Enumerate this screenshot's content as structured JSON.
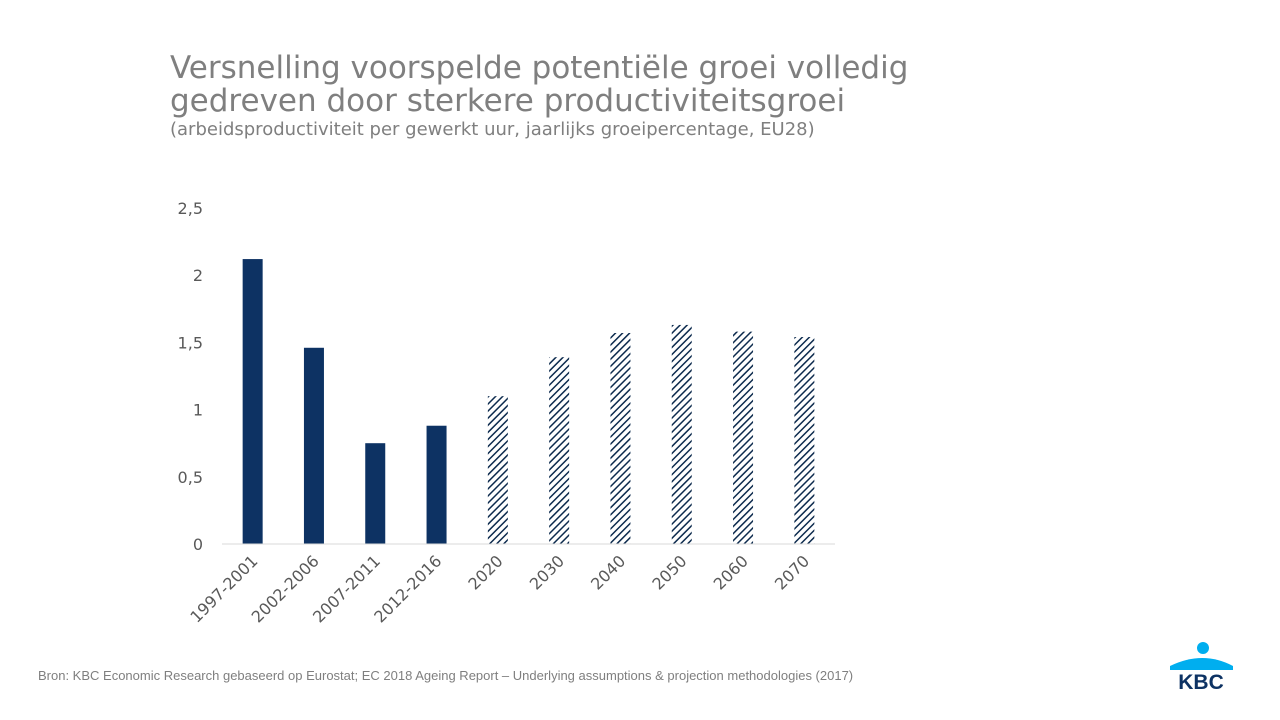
{
  "header": {
    "title_line1": "Versnelling voorspelde potentiële groei volledig",
    "title_line2": "gedreven door sterkere productiviteitsgroei",
    "subtitle": "(arbeidsproductiviteit per gewerkt uur, jaarlijks groeipercentage, EU28)"
  },
  "footer": {
    "source": "Bron: KBC Economic Research gebaseerd op Eurostat; EC 2018 Ageing Report – Underlying assumptions & projection methodologies (2017)"
  },
  "logo": {
    "text": "KBC",
    "icon": "kbc-logo-icon"
  },
  "colors": {
    "bar": "#0d3263",
    "text": "#595959",
    "axis": "#d9d9d9",
    "title": "#7f7f7f"
  },
  "chart_data": {
    "type": "bar",
    "categories": [
      "1997-2001",
      "2002-2006",
      "2007-2011",
      "2012-2016",
      "2020",
      "2030",
      "2040",
      "2050",
      "2060",
      "2070"
    ],
    "values": [
      2.12,
      1.46,
      0.75,
      0.88,
      1.1,
      1.39,
      1.57,
      1.63,
      1.58,
      1.54
    ],
    "styles": [
      "solid",
      "solid",
      "solid",
      "solid",
      "hatched",
      "hatched",
      "hatched",
      "hatched",
      "hatched",
      "hatched"
    ],
    "ylim": [
      0,
      2.5
    ],
    "yticks": [
      "0",
      "0,5",
      "1",
      "1,5",
      "2",
      "2,5"
    ],
    "grid": false,
    "legend": "none"
  }
}
